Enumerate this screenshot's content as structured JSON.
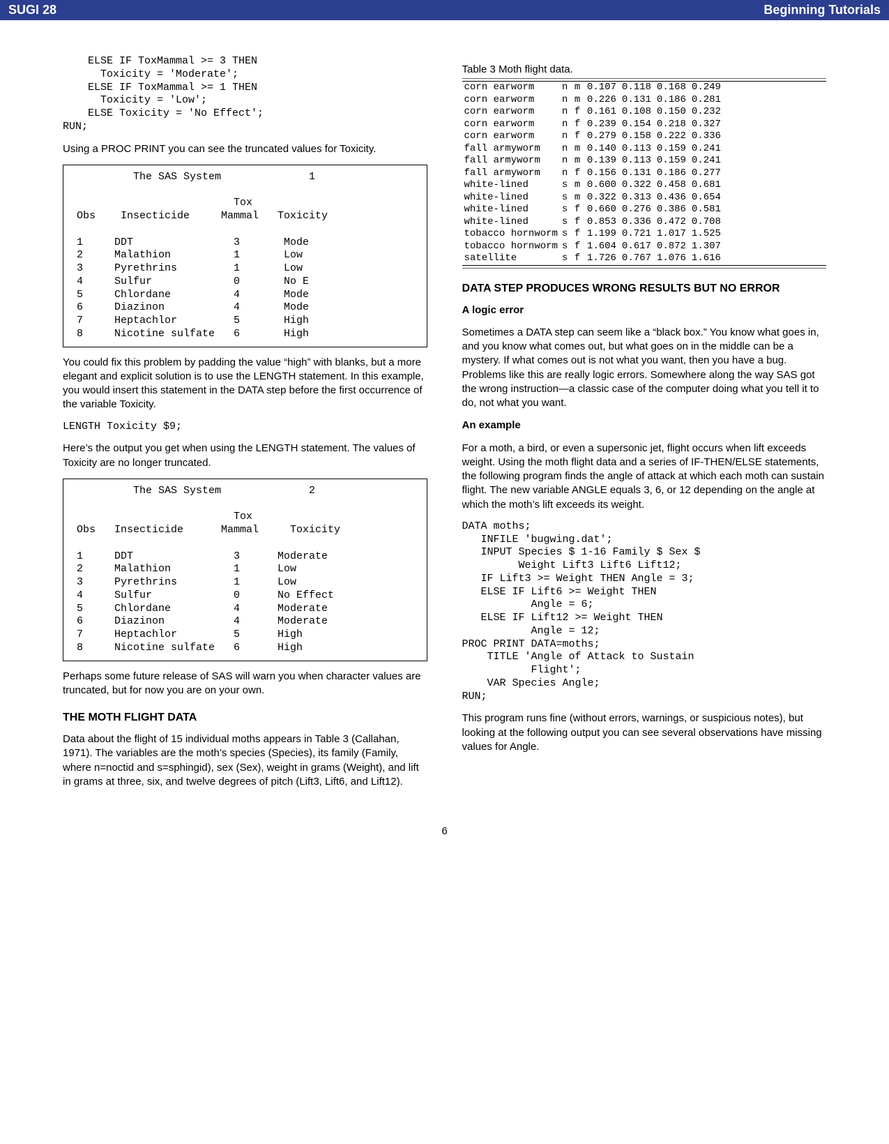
{
  "banner": {
    "left": "SUGI 28",
    "right": "Beginning Tutorials"
  },
  "page_number": "6",
  "left_col": {
    "code1": "    ELSE IF ToxMammal >= 3 THEN\n      Toxicity = 'Moderate';\n    ELSE IF ToxMammal >= 1 THEN\n      Toxicity = 'Low';\n    ELSE Toxicity = 'No Effect';\nRUN;",
    "para1": "Using a PROC PRINT you can see the truncated values for Toxicity.",
    "sas_box1": "          The SAS System              1\n\n                          Tox\n Obs    Insecticide     Mammal   Toxicity\n\n 1     DDT                3       Mode\n 2     Malathion          1       Low\n 3     Pyrethrins         1       Low\n 4     Sulfur             0       No E\n 5     Chlordane          4       Mode\n 6     Diazinon           4       Mode\n 7     Heptachlor         5       High\n 8     Nicotine sulfate   6       High",
    "para2": "You could fix this problem by padding the value “high” with blanks, but a more elegant and explicit solution is to use the LENGTH statement.  In this example, you would insert this statement in the DATA step before the first occurrence of the variable Toxicity.",
    "code2": "LENGTH Toxicity $9;",
    "para3": "Here’s the output you get when using the LENGTH statement. The values of Toxicity are no longer truncated.",
    "sas_box2": "          The SAS System              2\n\n                          Tox\n Obs   Insecticide      Mammal     Toxicity\n\n 1     DDT                3      Moderate\n 2     Malathion          1      Low\n 3     Pyrethrins         1      Low\n 4     Sulfur             0      No Effect\n 5     Chlordane          4      Moderate\n 6     Diazinon           4      Moderate\n 7     Heptachlor         5      High\n 8     Nicotine sulfate   6      High",
    "para4": "Perhaps some future release of SAS will warn you when character values are truncated, but for now you are on your own.",
    "h3_moth": "THE MOTH FLIGHT DATA",
    "para5": "Data about the flight of 15 individual moths appears in Table 3 (Callahan, 1971).  The variables are the moth’s species (Species), its family (Family, where n=noctid and s=sphingid), sex (Sex), weight in grams (Weight), and lift in grams at three, six, and twelve degrees of pitch (Lift3, Lift6, and Lift12)."
  },
  "right_col": {
    "table3_caption": "Table 3  Moth flight data.",
    "table3_rows": [
      [
        "corn earworm",
        "n",
        "m",
        "0.107",
        "0.118",
        "0.168",
        "0.249"
      ],
      [
        "corn earworm",
        "n",
        "m",
        "0.226",
        "0.131",
        "0.186",
        "0.281"
      ],
      [
        "corn earworm",
        "n",
        "f",
        "0.161",
        "0.108",
        "0.150",
        "0.232"
      ],
      [
        "corn earworm",
        "n",
        "f",
        "0.239",
        "0.154",
        "0.218",
        "0.327"
      ],
      [
        "corn earworm",
        "n",
        "f",
        "0.279",
        "0.158",
        "0.222",
        "0.336"
      ],
      [
        "fall armyworm",
        "n",
        "m",
        "0.140",
        "0.113",
        "0.159",
        "0.241"
      ],
      [
        "fall armyworm",
        "n",
        "m",
        "0.139",
        "0.113",
        "0.159",
        "0.241"
      ],
      [
        "fall armyworm",
        "n",
        "f",
        "0.156",
        "0.131",
        "0.186",
        "0.277"
      ],
      [
        "white-lined",
        "s",
        "m",
        "0.600",
        "0.322",
        "0.458",
        "0.681"
      ],
      [
        "white-lined",
        "s",
        "m",
        "0.322",
        "0.313",
        "0.436",
        "0.654"
      ],
      [
        "white-lined",
        "s",
        "f",
        "0.660",
        "0.276",
        "0.386",
        "0.581"
      ],
      [
        "white-lined",
        "s",
        "f",
        "0.853",
        "0.336",
        "0.472",
        "0.708"
      ],
      [
        "tobacco hornworm",
        "s",
        "f",
        "1.199",
        "0.721",
        "1.017",
        "1.525"
      ],
      [
        "tobacco hornworm",
        "s",
        "f",
        "1.604",
        "0.617",
        "0.872",
        "1.307"
      ],
      [
        "satellite",
        "s",
        "f",
        "1.726",
        "0.767",
        "1.076",
        "1.616"
      ]
    ],
    "table3_col_widths": [
      "136px",
      "18px",
      "18px",
      "50px",
      "50px",
      "50px",
      "50px"
    ],
    "h3_wrong": "DATA STEP PRODUCES WRONG RESULTS BUT NO ERROR",
    "sub_logic": "A logic error",
    "para_logic": "Sometimes a DATA step can seem like a “black box.” You know what goes in, and you know what comes out, but what goes on in the middle can be a mystery.  If what comes out is not what you want, then you have a bug.  Problems like this are really logic errors.  Somewhere along the way SAS got the wrong instruction—a classic case of the computer doing what you tell it to do, not what you want.",
    "sub_example": "An example",
    "para_example": "For a moth, a bird, or even a supersonic jet, flight occurs when lift exceeds weight.  Using the moth flight data and a series of IF-THEN/ELSE statements, the following program finds the angle of attack at which each moth can sustain flight.  The new variable ANGLE equals 3, 6, or 12 depending on the angle at which the moth’s lift exceeds its weight.",
    "code_moths": "DATA moths;\n   INFILE 'bugwing.dat';\n   INPUT Species $ 1-16 Family $ Sex $\n         Weight Lift3 Lift6 Lift12;\n   IF Lift3 >= Weight THEN Angle = 3;\n   ELSE IF Lift6 >= Weight THEN\n           Angle = 6;\n   ELSE IF Lift12 >= Weight THEN\n           Angle = 12;\nPROC PRINT DATA=moths;\n    TITLE 'Angle of Attack to Sustain\n           Flight';\n    VAR Species Angle;\nRUN;",
    "para_runs": "This program runs fine (without errors, warnings, or suspicious notes), but looking at the following output you can see several observations have missing values for Angle."
  }
}
